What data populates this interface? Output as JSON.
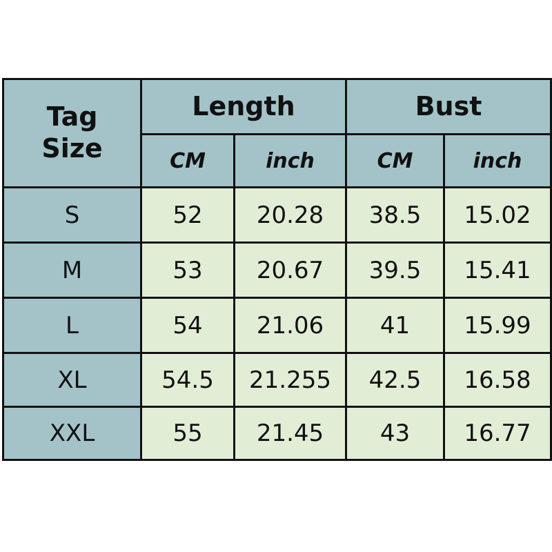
{
  "colors": {
    "header": "#a3c3c9",
    "data": "#e2edd6",
    "border": "#111111"
  },
  "header": {
    "tag_size": "Tag\nSize",
    "tag_line1": "Tag",
    "tag_line2": "Size",
    "groups": [
      {
        "label": "Length",
        "units": [
          "CM",
          "inch"
        ]
      },
      {
        "label": "Bust",
        "units": [
          "CM",
          "inch"
        ]
      }
    ]
  },
  "rows": [
    {
      "size": "S",
      "length_cm": "52",
      "length_inch": "20.28",
      "bust_cm": "38.5",
      "bust_inch": "15.02"
    },
    {
      "size": "M",
      "length_cm": "53",
      "length_inch": "20.67",
      "bust_cm": "39.5",
      "bust_inch": "15.41"
    },
    {
      "size": "L",
      "length_cm": "54",
      "length_inch": "21.06",
      "bust_cm": "41",
      "bust_inch": "15.99"
    },
    {
      "size": "XL",
      "length_cm": "54.5",
      "length_inch": "21.255",
      "bust_cm": "42.5",
      "bust_inch": "16.58"
    },
    {
      "size": "XXL",
      "length_cm": "55",
      "length_inch": "21.45",
      "bust_cm": "43",
      "bust_inch": "16.77"
    }
  ]
}
